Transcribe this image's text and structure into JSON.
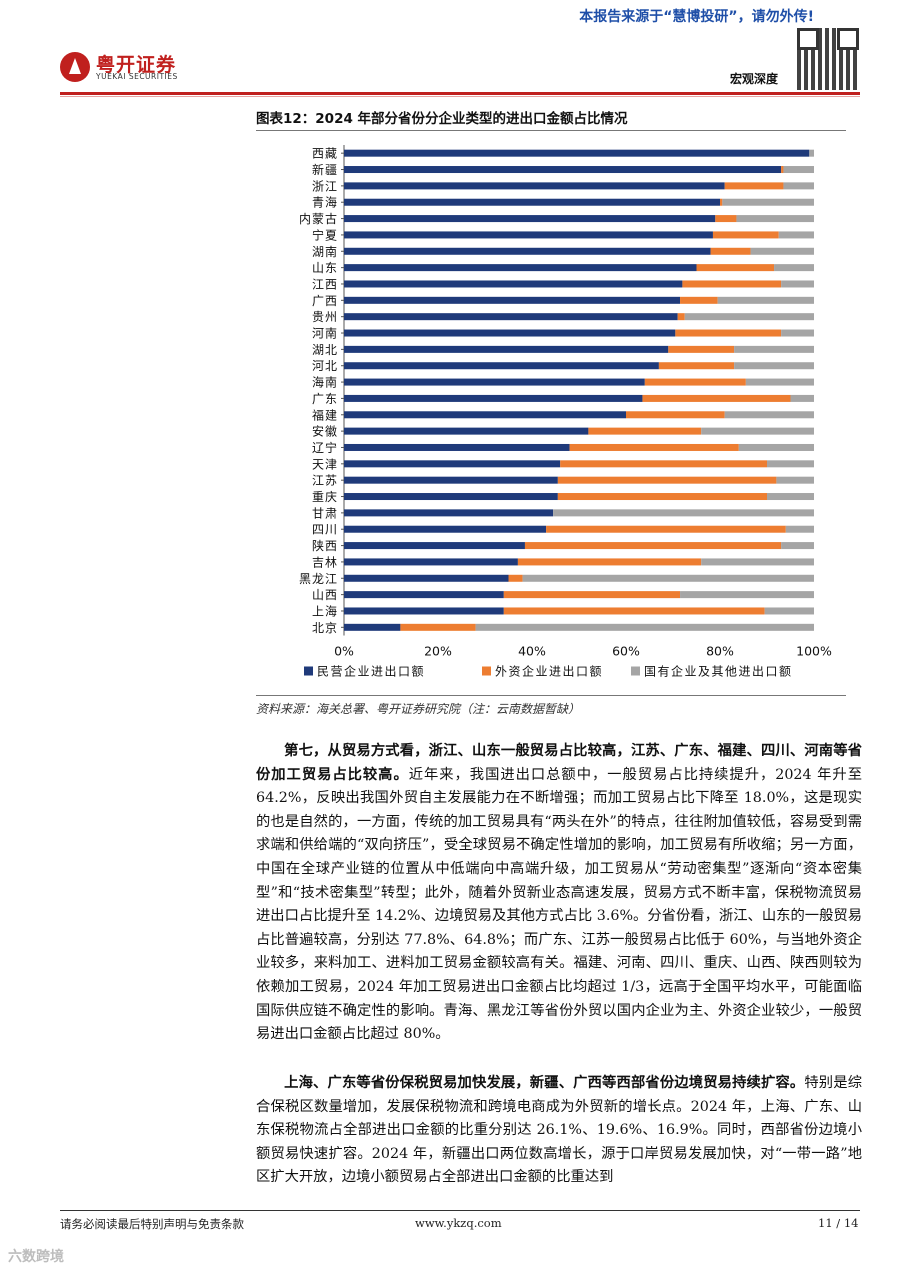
{
  "header": {
    "notice": "本报告来源于“慧博投研”，请勿外传!",
    "logo_cn": "粤开证券",
    "logo_en": "YUEKAI SECURITIES",
    "section": "宏观深度"
  },
  "figure": {
    "title": "图表12：2024 年部分省份分企业类型的进出口金额占比情况",
    "source": "资料来源：海关总署、粤开证券研究院（注：云南数据暂缺）"
  },
  "chart_data": {
    "type": "bar",
    "orientation": "horizontal",
    "stacked": true,
    "categories": [
      "西藏",
      "新疆",
      "浙江",
      "青海",
      "内蒙古",
      "宁夏",
      "湖南",
      "山东",
      "江西",
      "广西",
      "贵州",
      "河南",
      "湖北",
      "河北",
      "海南",
      "广东",
      "福建",
      "安徽",
      "辽宁",
      "天津",
      "江苏",
      "重庆",
      "甘肃",
      "四川",
      "陕西",
      "吉林",
      "黑龙江",
      "山西",
      "上海",
      "北京"
    ],
    "series": [
      {
        "name": "民营企业进出口额",
        "color": "#1f3a7a",
        "values": [
          99.0,
          93.0,
          81.0,
          80.0,
          79.0,
          78.5,
          78.0,
          75.0,
          72.0,
          71.5,
          71.0,
          70.5,
          69.0,
          67.0,
          64.0,
          63.5,
          60.0,
          52.0,
          48.0,
          46.0,
          45.5,
          45.5,
          44.5,
          43.0,
          38.5,
          37.0,
          35.0,
          34.0,
          34.0,
          12.0
        ]
      },
      {
        "name": "外资企业进出口额",
        "color": "#ed7d31",
        "values": [
          0.0,
          0.5,
          12.5,
          0.5,
          4.5,
          14.0,
          8.5,
          16.5,
          21.0,
          8.0,
          1.5,
          22.5,
          14.0,
          16.0,
          21.5,
          31.5,
          21.0,
          24.0,
          36.0,
          44.0,
          46.5,
          44.5,
          0.0,
          51.0,
          54.5,
          39.0,
          3.0,
          37.5,
          55.5,
          16.0
        ]
      },
      {
        "name": "国有企业及其他进出口额",
        "color": "#a5a5a5",
        "values": [
          1.0,
          6.5,
          6.5,
          19.5,
          16.5,
          7.5,
          13.5,
          8.5,
          7.0,
          20.5,
          27.5,
          7.0,
          17.0,
          17.0,
          14.5,
          5.0,
          19.0,
          24.0,
          16.0,
          10.0,
          8.0,
          10.0,
          55.5,
          6.0,
          7.0,
          24.0,
          62.0,
          28.5,
          10.5,
          72.0
        ]
      }
    ],
    "x_ticks": [
      "0%",
      "20%",
      "40%",
      "60%",
      "80%",
      "100%"
    ],
    "xlim": [
      0,
      100
    ],
    "legend_position": "bottom"
  },
  "body": {
    "para1_bold": "第七，从贸易方式看，浙江、山东一般贸易占比较高，江苏、广东、福建、四川、河南等省份加工贸易占比较高。",
    "para1_text": "近年来，我国进出口总额中，一般贸易占比持续提升，2024 年升至 64.2%，反映出我国外贸自主发展能力在不断增强；而加工贸易占比下降至 18.0%，这是现实的也是自然的，一方面，传统的加工贸易具有“两头在外”的特点，往往附加值较低，容易受到需求端和供给端的“双向挤压”，受全球贸易不确定性增加的影响，加工贸易有所收缩；另一方面，中国在全球产业链的位置从中低端向中高端升级，加工贸易从“劳动密集型”逐渐向“资本密集型”和“技术密集型”转型；此外，随着外贸新业态高速发展，贸易方式不断丰富，保税物流贸易进出口占比提升至 14.2%、边境贸易及其他方式占比 3.6%。分省份看，浙江、山东的一般贸易占比普遍较高，分别达 77.8%、64.8%；而广东、江苏一般贸易占比低于 60%，与当地外资企业较多，来料加工、进料加工贸易金额较高有关。福建、河南、四川、重庆、山西、陕西则较为依赖加工贸易，2024 年加工贸易进出口金额占比均超过 1/3，远高于全国平均水平，可能面临国际供应链不确定性的影响。青海、黑龙江等省份外贸以国内企业为主、外资企业较少，一般贸易进出口金额占比超过 80%。",
    "para2_bold": "上海、广东等省份保税贸易加快发展，新疆、广西等西部省份边境贸易持续扩容。",
    "para2_text": "特别是综合保税区数量增加，发展保税物流和跨境电商成为外贸新的增长点。2024 年，上海、广东、山东保税物流占全部进出口金额的比重分别达 26.1%、19.6%、16.9%。同时，西部省份边境小额贸易快速扩容。2024 年，新疆出口两位数高增长，源于口岸贸易发展加快，对“一带一路”地区扩大开放，边境小额贸易占全部进出口金额的比重达到"
  },
  "footer": {
    "disclaimer": "请务必阅读最后特别声明与免责条款",
    "url": "www.ykzq.com",
    "page": "11 / 14"
  },
  "watermark": "六数跨境"
}
